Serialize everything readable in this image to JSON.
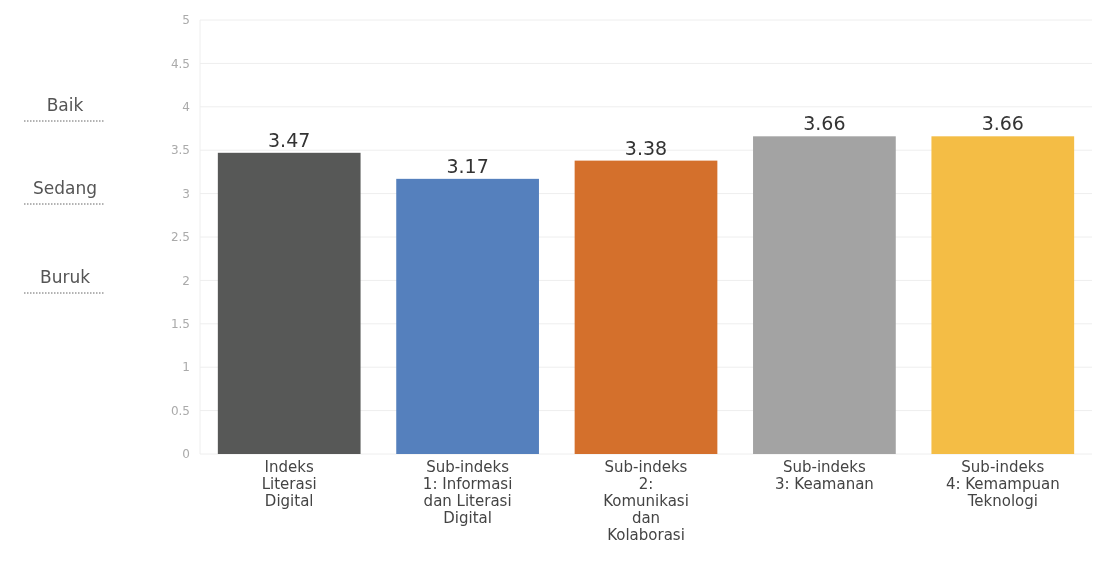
{
  "chart_data": {
    "type": "bar",
    "categories": [
      "Indeks Literasi Digital",
      "Sub-indeks 1: Informasi dan Literasi Digital",
      "Sub-indeks 2: Komunikasi dan Kolaborasi",
      "Sub-indeks 3: Keamanan",
      "Sub-indeks 4: Kemampuan Teknologi"
    ],
    "values": [
      3.47,
      3.17,
      3.38,
      3.66,
      3.66
    ],
    "colors": [
      "#575857",
      "#5580bd",
      "#d4702c",
      "#a3a3a3",
      "#f4bd45"
    ],
    "ylim": [
      0,
      5
    ],
    "yticks": [
      0,
      0.5,
      1,
      1.5,
      2,
      2.5,
      3,
      3.5,
      4,
      4.5,
      5
    ],
    "grid": "y",
    "data_labels": true,
    "annotations": [
      "Baik",
      "Sedang",
      "Buruk"
    ]
  }
}
